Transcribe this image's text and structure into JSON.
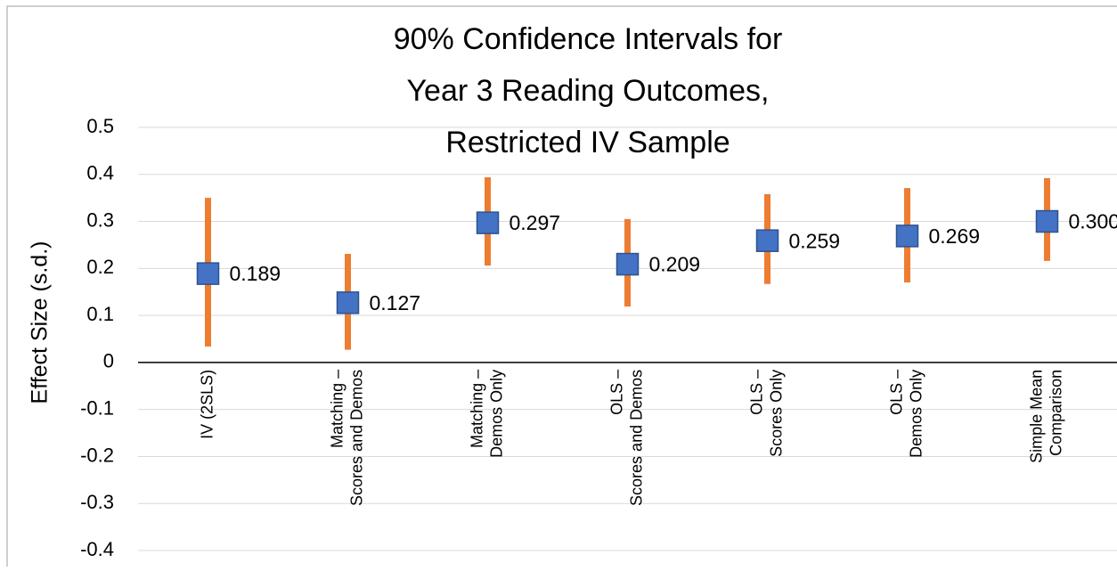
{
  "chart_data": {
    "type": "interval",
    "title": [
      "90% Confidence Intervals for",
      "Year 3 Reading Outcomes,",
      "Restricted IV Sample"
    ],
    "y_label": "Effect Size (s.d.)",
    "categories": [
      [
        "IV (2SLS)"
      ],
      [
        "Matching –",
        "Scores and Demos"
      ],
      [
        "Matching –",
        "Demos Only"
      ],
      [
        "OLS –",
        "Scores and Demos"
      ],
      [
        "OLS –",
        "Scores Only"
      ],
      [
        "OLS –",
        "Demos Only"
      ],
      [
        "Simple Mean",
        "Comparison"
      ]
    ],
    "values": [
      0.189,
      0.127,
      0.297,
      0.209,
      0.259,
      0.269,
      0.3
    ],
    "value_labels": [
      "0.189",
      "0.127",
      "0.297",
      "0.209",
      "0.259",
      "0.269",
      "0.300"
    ],
    "low": [
      0.034,
      0.027,
      0.206,
      0.119,
      0.167,
      0.17,
      0.216
    ],
    "high": [
      0.35,
      0.231,
      0.394,
      0.305,
      0.358,
      0.371,
      0.392
    ],
    "color": "#4472c4",
    "interval_color": "#ed7d31",
    "ylim": [
      -0.4,
      0.5
    ],
    "yticks": [
      0.5,
      0.4,
      0.3,
      0.2,
      0.1,
      0,
      -0.1,
      -0.2,
      -0.3,
      -0.4
    ],
    "grid": true
  }
}
